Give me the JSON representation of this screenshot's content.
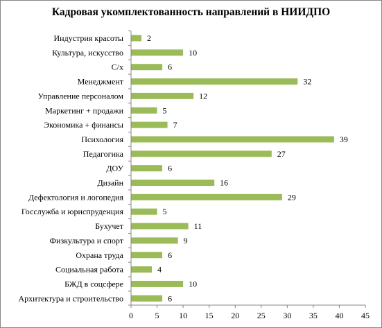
{
  "chart_data": {
    "type": "bar",
    "orientation": "horizontal",
    "title": "Кадровая укомплектованность направлений в НИИДПО",
    "xlim": [
      0,
      45
    ],
    "x_ticks": [
      0,
      5,
      10,
      15,
      20,
      25,
      30,
      35,
      40,
      45
    ],
    "grid": false,
    "bar_color": "#9bbb59",
    "categories": [
      "Индустрия красоты",
      "Культура, искусство",
      "С/х",
      "Менеджмент",
      "Управление персоналом",
      "Маркетинг + продажи",
      "Экономика + финансы",
      "Психология",
      "Педагогика",
      "ДОУ",
      "Дизайн",
      "Дефектология и логопедия",
      "Госслужба и юриспруденция",
      "Бухучет",
      "Физкультура и спорт",
      "Охрана труда",
      "Социальная работа",
      "БЖД в соцсфере",
      "Архитектура  и строительство"
    ],
    "values": [
      2,
      10,
      6,
      32,
      12,
      5,
      7,
      39,
      27,
      6,
      16,
      29,
      5,
      11,
      9,
      6,
      4,
      10,
      6
    ]
  }
}
